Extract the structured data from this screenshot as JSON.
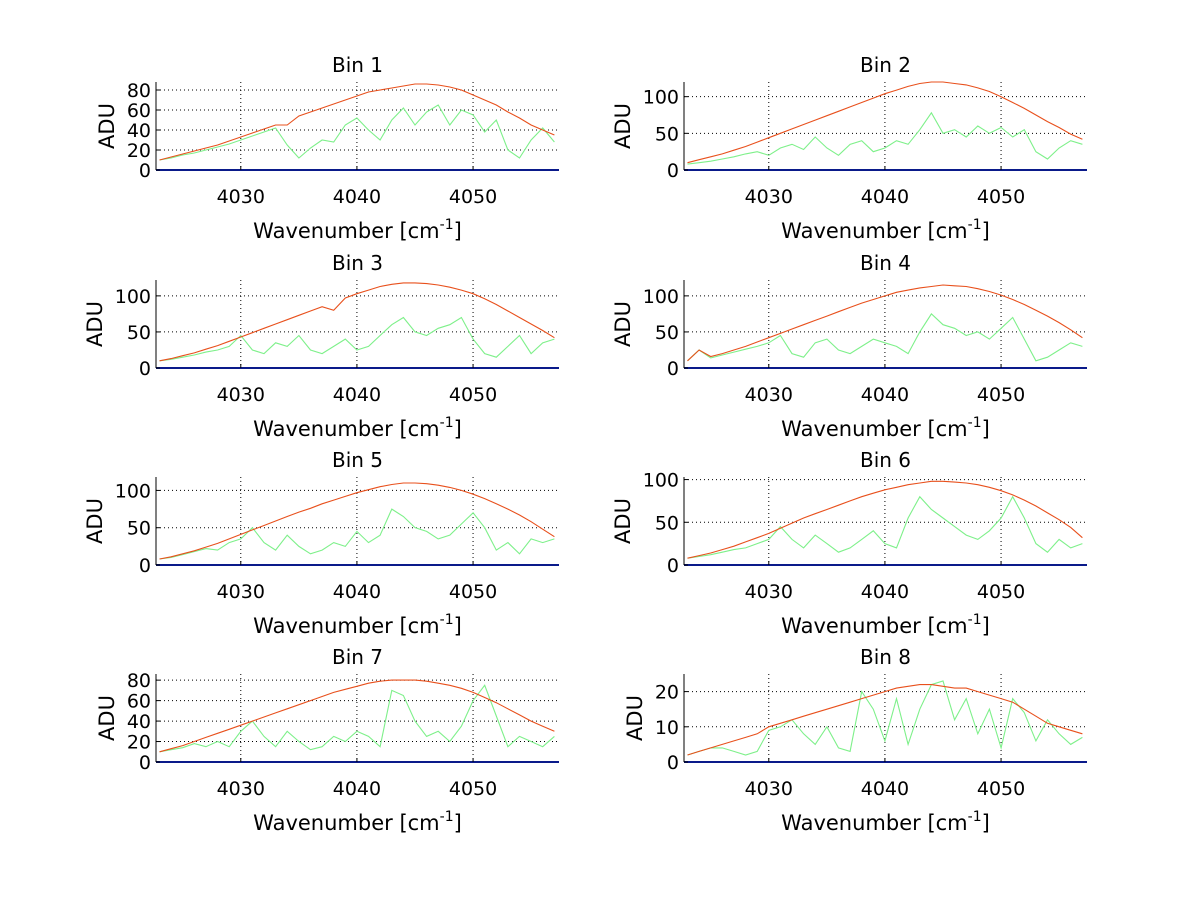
{
  "colors": {
    "envelope": "#e8501c",
    "spectrum": "#7ef08a",
    "zero": "#0a1a8a",
    "grid": "#000000"
  },
  "chart_data": {
    "type": "line",
    "layout": "4x2 subplots",
    "x": [
      4023,
      4024,
      4025,
      4026,
      4027,
      4028,
      4029,
      4030,
      4031,
      4032,
      4033,
      4034,
      4035,
      4036,
      4037,
      4038,
      4039,
      4040,
      4041,
      4042,
      4043,
      4044,
      4045,
      4046,
      4047,
      4048,
      4049,
      4050,
      4051,
      4052,
      4053,
      4054,
      4055,
      4056,
      4057
    ],
    "xlim": [
      4022.7,
      4057.4
    ],
    "xticks": [
      4030,
      4040,
      4050
    ],
    "xlabel": "Wavenumber [cm",
    "xlabel_sup": "-1",
    "xlabel_end": "]",
    "ylabel": "ADU",
    "grid": true,
    "panels": [
      {
        "title": "Bin 1",
        "ylim": [
          0,
          88
        ],
        "yticks": [
          0,
          20,
          40,
          60,
          80
        ],
        "series": [
          {
            "name": "envelope",
            "values": [
              10,
              13,
              16,
              19,
              22,
              25,
              29,
              33,
              37,
              41,
              45,
              45,
              54,
              58,
              62,
              66,
              70,
              74,
              78,
              80,
              82,
              84,
              86,
              86,
              85,
              83,
              80,
              75,
              70,
              65,
              58,
              52,
              45,
              40,
              35
            ]
          },
          {
            "name": "spectrum",
            "values": [
              10,
              12,
              15,
              17,
              20,
              23,
              26,
              30,
              34,
              38,
              42,
              25,
              12,
              22,
              30,
              28,
              45,
              52,
              40,
              30,
              50,
              62,
              45,
              58,
              65,
              45,
              60,
              55,
              38,
              50,
              20,
              12,
              30,
              42,
              28
            ]
          },
          {
            "name": "zero",
            "values": [
              0,
              0
            ]
          }
        ]
      },
      {
        "title": "Bin 2",
        "ylim": [
          0,
          120
        ],
        "yticks": [
          0,
          50,
          100
        ],
        "series": [
          {
            "name": "envelope",
            "values": [
              10,
              14,
              18,
              22,
              27,
              32,
              38,
              44,
              50,
              56,
              62,
              68,
              74,
              80,
              86,
              92,
              98,
              104,
              109,
              114,
              118,
              120,
              120,
              118,
              116,
              112,
              107,
              100,
              92,
              84,
              75,
              66,
              58,
              49,
              42
            ]
          },
          {
            "name": "spectrum",
            "values": [
              8,
              10,
              12,
              15,
              18,
              22,
              25,
              20,
              30,
              35,
              28,
              45,
              30,
              20,
              35,
              40,
              25,
              30,
              40,
              35,
              55,
              78,
              50,
              55,
              45,
              60,
              50,
              58,
              45,
              55,
              25,
              15,
              30,
              40,
              35
            ]
          },
          {
            "name": "zero",
            "values": [
              0,
              0
            ]
          }
        ]
      },
      {
        "title": "Bin 3",
        "ylim": [
          0,
          122
        ],
        "yticks": [
          0,
          50,
          100
        ],
        "series": [
          {
            "name": "envelope",
            "values": [
              10,
              13,
              17,
              21,
              26,
              31,
              37,
              43,
              49,
              55,
              61,
              67,
              73,
              79,
              85,
              80,
              97,
              103,
              108,
              113,
              116,
              118,
              118,
              117,
              115,
              112,
              108,
              103,
              96,
              88,
              79,
              70,
              61,
              52,
              42
            ]
          },
          {
            "name": "spectrum",
            "values": [
              10,
              12,
              15,
              18,
              22,
              25,
              30,
              45,
              25,
              20,
              35,
              30,
              45,
              25,
              20,
              30,
              40,
              25,
              30,
              45,
              60,
              70,
              50,
              45,
              55,
              60,
              70,
              40,
              20,
              15,
              30,
              45,
              20,
              35,
              40
            ]
          },
          {
            "name": "zero",
            "values": [
              0,
              0
            ]
          }
        ]
      },
      {
        "title": "Bin 4",
        "ylim": [
          0,
          122
        ],
        "yticks": [
          0,
          50,
          100
        ],
        "series": [
          {
            "name": "envelope",
            "values": [
              10,
              25,
              16,
              20,
              25,
              30,
              36,
              42,
              48,
              54,
              60,
              66,
              72,
              78,
              84,
              90,
              95,
              100,
              105,
              108,
              111,
              113,
              115,
              114,
              113,
              110,
              106,
              101,
              95,
              88,
              80,
              72,
              63,
              53,
              42
            ]
          },
          {
            "name": "spectrum",
            "values": [
              10,
              25,
              14,
              18,
              22,
              26,
              30,
              35,
              45,
              20,
              15,
              35,
              40,
              25,
              20,
              30,
              40,
              35,
              30,
              20,
              50,
              75,
              60,
              55,
              45,
              50,
              40,
              55,
              70,
              40,
              10,
              15,
              25,
              35,
              30
            ]
          },
          {
            "name": "zero",
            "values": [
              0,
              0
            ]
          }
        ]
      },
      {
        "title": "Bin 5",
        "ylim": [
          0,
          118
        ],
        "yticks": [
          0,
          50,
          100
        ],
        "series": [
          {
            "name": "envelope",
            "values": [
              8,
              11,
              15,
              19,
              24,
              29,
              35,
              41,
              47,
              53,
              59,
              65,
              71,
              76,
              82,
              87,
              92,
              97,
              101,
              105,
              108,
              110,
              110,
              109,
              107,
              104,
              100,
              95,
              89,
              82,
              75,
              67,
              58,
              48,
              38
            ]
          },
          {
            "name": "spectrum",
            "values": [
              8,
              10,
              14,
              18,
              22,
              20,
              30,
              35,
              50,
              30,
              20,
              40,
              25,
              15,
              20,
              30,
              25,
              45,
              30,
              40,
              75,
              65,
              50,
              45,
              35,
              40,
              55,
              70,
              50,
              20,
              30,
              15,
              35,
              30,
              35
            ]
          },
          {
            "name": "zero",
            "values": [
              0,
              0
            ]
          }
        ]
      },
      {
        "title": "Bin 6",
        "ylim": [
          0,
          103
        ],
        "yticks": [
          0,
          50,
          100
        ],
        "series": [
          {
            "name": "envelope",
            "values": [
              8,
              11,
              14,
              18,
              22,
              27,
              32,
              37,
              43,
              49,
              55,
              60,
              65,
              70,
              75,
              80,
              84,
              88,
              91,
              94,
              96,
              98,
              98,
              97,
              96,
              94,
              91,
              87,
              82,
              76,
              69,
              61,
              53,
              44,
              32
            ]
          },
          {
            "name": "spectrum",
            "values": [
              8,
              10,
              12,
              15,
              18,
              20,
              25,
              30,
              45,
              30,
              20,
              35,
              25,
              15,
              20,
              30,
              40,
              25,
              20,
              55,
              80,
              65,
              55,
              45,
              35,
              30,
              40,
              55,
              80,
              55,
              25,
              15,
              30,
              20,
              25
            ]
          },
          {
            "name": "zero",
            "values": [
              0,
              0
            ]
          }
        ]
      },
      {
        "title": "Bin 7",
        "ylim": [
          0,
          86
        ],
        "yticks": [
          0,
          20,
          40,
          60,
          80
        ],
        "series": [
          {
            "name": "envelope",
            "values": [
              10,
              13,
              16,
              20,
              24,
              28,
              32,
              36,
              40,
              44,
              48,
              52,
              56,
              60,
              64,
              68,
              71,
              74,
              77,
              79,
              80,
              80,
              80,
              79,
              77,
              75,
              72,
              68,
              63,
              58,
              52,
              46,
              40,
              35,
              30
            ]
          },
          {
            "name": "spectrum",
            "values": [
              10,
              12,
              14,
              18,
              15,
              20,
              15,
              30,
              40,
              25,
              15,
              30,
              20,
              12,
              15,
              25,
              20,
              30,
              25,
              15,
              70,
              65,
              40,
              25,
              30,
              20,
              35,
              60,
              75,
              45,
              15,
              25,
              20,
              15,
              25
            ]
          },
          {
            "name": "zero",
            "values": [
              0,
              0
            ]
          }
        ]
      },
      {
        "title": "Bin 8",
        "ylim": [
          0,
          25
        ],
        "yticks": [
          0,
          10,
          20
        ],
        "series": [
          {
            "name": "envelope",
            "values": [
              2,
              3,
              4,
              5,
              6,
              7,
              8,
              10,
              11,
              12,
              13,
              14,
              15,
              16,
              17,
              18,
              19,
              20,
              21,
              21.5,
              22,
              22,
              21.5,
              21,
              21,
              20,
              19,
              18,
              17,
              15,
              13,
              11,
              10,
              9,
              8
            ]
          },
          {
            "name": "spectrum",
            "values": [
              2,
              3,
              4,
              4,
              3,
              2,
              3,
              9,
              10,
              12,
              8,
              5,
              10,
              4,
              3,
              20,
              15,
              6,
              18,
              5,
              15,
              22,
              23,
              12,
              18,
              8,
              15,
              4,
              18,
              14,
              6,
              12,
              8,
              5,
              7
            ]
          },
          {
            "name": "zero",
            "values": [
              0,
              0
            ]
          }
        ]
      }
    ]
  }
}
